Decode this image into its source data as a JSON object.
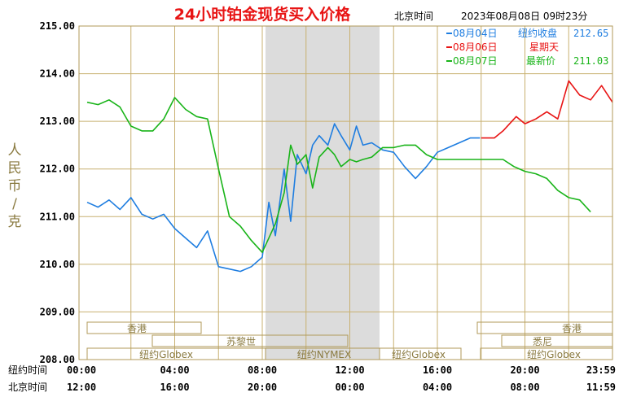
{
  "chart_data": {
    "type": "line",
    "title": "24小时铂金现货买入价格",
    "timezone_label": "北京时间",
    "timestamp": "2023年08月08日 09时23分",
    "ylabel": "人民币/克",
    "ylim": [
      208,
      215
    ],
    "yticks": [
      "215.00",
      "214.00",
      "213.00",
      "212.00",
      "211.00",
      "210.00",
      "209.00",
      "208.00"
    ],
    "x_rows": [
      {
        "label": "纽约时间",
        "ticks": [
          "00:00",
          "04:00",
          "08:00",
          "12:00",
          "16:00",
          "20:00",
          "23:59"
        ]
      },
      {
        "label": "北京时间",
        "ticks": [
          "12:00",
          "16:00",
          "20:00",
          "00:00",
          "04:00",
          "08:00",
          "11:59"
        ]
      }
    ],
    "legend": [
      {
        "label": "08月04日",
        "note": "纽约收盘",
        "value": "212.65",
        "color": "#1e7de0"
      },
      {
        "label": "08月06日",
        "note": "星期天",
        "value": "",
        "color": "#e81414"
      },
      {
        "label": "08月07日",
        "note": "最新价",
        "value": "211.03",
        "color": "#19b419"
      }
    ],
    "sessions": [
      "香港",
      "苏黎世",
      "纽约NYMEX",
      "纽约Globex",
      "纽约Globex",
      "悉尼",
      "香港",
      "纽约Globex"
    ],
    "series": [
      {
        "name": "08月04日",
        "color": "#1e7de0",
        "x": [
          0,
          0.5,
          1,
          1.5,
          2,
          2.5,
          3,
          3.5,
          4,
          4.5,
          5,
          5.5,
          6,
          6.5,
          7,
          7.5,
          8,
          8.3,
          8.6,
          9,
          9.3,
          9.6,
          10,
          10.3,
          10.6,
          11,
          11.3,
          11.6,
          12,
          12.3,
          12.6,
          13,
          13.5,
          14,
          14.5,
          15,
          15.5,
          16,
          16.5,
          17,
          17.5,
          17.95
        ],
        "y": [
          211.3,
          211.2,
          211.35,
          211.15,
          211.4,
          211.05,
          210.95,
          211.05,
          210.75,
          210.55,
          210.35,
          210.7,
          209.95,
          209.9,
          209.85,
          209.95,
          210.15,
          211.3,
          210.6,
          212.0,
          210.9,
          212.3,
          211.9,
          212.5,
          212.7,
          212.5,
          212.95,
          212.7,
          212.4,
          212.9,
          212.5,
          212.55,
          212.4,
          212.35,
          212.05,
          211.8,
          212.05,
          212.35,
          212.45,
          212.55,
          212.65,
          212.65
        ]
      },
      {
        "name": "08月06日",
        "color": "#e81414",
        "x": [
          18,
          18.6,
          19,
          19.6,
          20,
          20.5,
          21,
          21.5,
          22,
          22.5,
          23,
          23.5,
          24
        ],
        "y": [
          212.65,
          212.65,
          212.8,
          213.1,
          212.95,
          213.05,
          213.2,
          213.05,
          213.85,
          213.55,
          213.45,
          213.75,
          213.4
        ]
      },
      {
        "name": "08月07日",
        "color": "#19b419",
        "x": [
          0,
          0.5,
          1,
          1.5,
          2,
          2.5,
          3,
          3.5,
          4,
          4.5,
          5,
          5.5,
          6,
          6.5,
          7,
          7.5,
          8,
          8.3,
          8.6,
          9,
          9.3,
          9.6,
          10,
          10.3,
          10.6,
          11,
          11.3,
          11.6,
          12,
          12.3,
          12.6,
          13,
          13.5,
          14,
          14.5,
          15,
          15.5,
          16,
          16.5,
          17,
          17.5,
          18,
          18.5,
          19,
          19.5,
          20,
          20.5,
          21,
          21.5,
          22,
          22.5,
          23
        ],
        "y": [
          213.4,
          213.35,
          213.45,
          213.3,
          212.9,
          212.8,
          212.8,
          213.05,
          213.5,
          213.25,
          213.1,
          213.05,
          212.0,
          211.0,
          210.8,
          210.5,
          210.25,
          210.55,
          210.85,
          211.5,
          212.5,
          212.1,
          212.3,
          211.6,
          212.25,
          212.45,
          212.3,
          212.05,
          212.2,
          212.15,
          212.2,
          212.25,
          212.45,
          212.45,
          212.5,
          212.5,
          212.3,
          212.2,
          212.2,
          212.2,
          212.2,
          212.2,
          212.2,
          212.2,
          212.05,
          211.95,
          211.9,
          211.8,
          211.55,
          211.4,
          211.35,
          211.1
        ]
      }
    ]
  }
}
